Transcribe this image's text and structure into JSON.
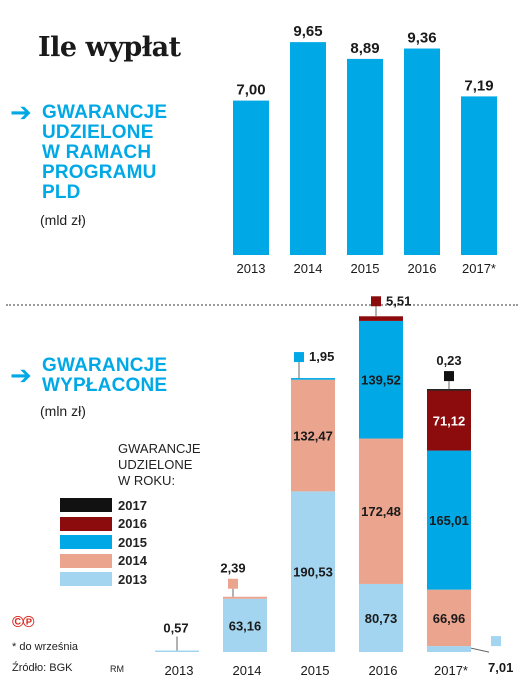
{
  "title": "Ile wypłat",
  "colors": {
    "accent": "#00a9e6",
    "s2013": "#a3d5f0",
    "s2014": "#eba58f",
    "s2015": "#00a9e6",
    "s2016": "#8c0c0e",
    "s2017": "#111111"
  },
  "legend": {
    "title_lines": [
      "GWARANCJE",
      "UDZIELONE",
      "W ROKU:"
    ],
    "items": [
      {
        "label": "2017",
        "color": "#111111"
      },
      {
        "label": "2016",
        "color": "#8c0c0e"
      },
      {
        "label": "2015",
        "color": "#00a9e6"
      },
      {
        "label": "2014",
        "color": "#eba58f"
      },
      {
        "label": "2013",
        "color": "#a3d5f0"
      }
    ]
  },
  "footnote": "* do września",
  "source": "Źródło: BGK",
  "author": "RM",
  "logo": "©℗",
  "chart_data": [
    {
      "type": "bar",
      "title_lines": [
        "GWARANCJE",
        "UDZIELONE",
        "W RAMACH",
        "PROGRAMU",
        "PLD"
      ],
      "unit": "(mld zł)",
      "categories": [
        "2013",
        "2014",
        "2015",
        "2016",
        "2017*"
      ],
      "values": [
        7.0,
        9.65,
        8.89,
        9.36,
        7.19
      ],
      "value_labels": [
        "7,00",
        "9,65",
        "8,89",
        "9,36",
        "7,19"
      ],
      "color": "#00a9e6",
      "ylim": [
        0,
        10.2
      ]
    },
    {
      "type": "bar",
      "stacked": true,
      "title_lines": [
        "GWARANCJE",
        "WYPŁACONE"
      ],
      "unit": "(mln zł)",
      "categories": [
        "2013",
        "2014",
        "2015",
        "2016",
        "2017*"
      ],
      "series": [
        {
          "name": "2013",
          "color": "#a3d5f0",
          "values": [
            0.57,
            63.16,
            190.53,
            80.73,
            7.01
          ],
          "labels": [
            "0,57",
            "63,16",
            "190,53",
            "80,73",
            "7,01"
          ]
        },
        {
          "name": "2014",
          "color": "#eba58f",
          "values": [
            0,
            2.39,
            132.47,
            172.48,
            66.96
          ],
          "labels": [
            "",
            "2,39",
            "132,47",
            "172,48",
            "66,96"
          ]
        },
        {
          "name": "2015",
          "color": "#00a9e6",
          "values": [
            0,
            0,
            1.95,
            139.52,
            165.01
          ],
          "labels": [
            "",
            "",
            "1,95",
            "139,52",
            "165,01"
          ]
        },
        {
          "name": "2016",
          "color": "#8c0c0e",
          "values": [
            0,
            0,
            0,
            5.51,
            71.12
          ],
          "labels": [
            "",
            "",
            "",
            "5,51",
            "71,12"
          ]
        },
        {
          "name": "2017",
          "color": "#111111",
          "values": [
            0,
            0,
            0,
            0,
            0.23
          ],
          "labels": [
            "",
            "",
            "",
            "",
            "0,23"
          ]
        }
      ],
      "ylim": [
        0,
        400
      ]
    }
  ]
}
